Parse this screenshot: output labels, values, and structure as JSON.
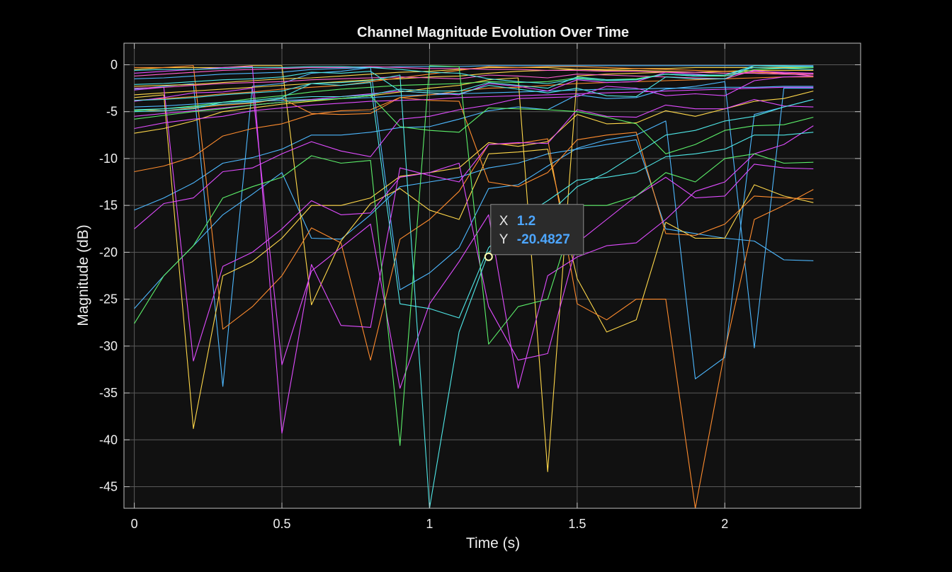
{
  "chart_data": {
    "type": "line",
    "title": "Channel Magnitude Evolution Over Time",
    "xlabel": "Time (s)",
    "ylabel": "Magnitude (dB)",
    "xlim": [
      -0.035,
      2.46
    ],
    "ylim": [
      -47.3,
      2.3
    ],
    "xticks": [
      0,
      0.5,
      1,
      1.5,
      2
    ],
    "xtick_labels": [
      "0",
      "0.5",
      "1",
      "1.5",
      "2"
    ],
    "yticks": [
      0,
      -5,
      -10,
      -15,
      -20,
      -25,
      -30,
      -35,
      -40,
      -45
    ],
    "ytick_labels": [
      "0",
      "-5",
      "-10",
      "-15",
      "-20",
      "-25",
      "-30",
      "-35",
      "-40",
      "-45"
    ],
    "grid": true,
    "background": "#111111",
    "x": [
      0,
      0.1,
      0.2,
      0.3,
      0.4,
      0.5,
      0.6,
      0.7,
      0.8,
      0.9,
      1.0,
      1.1,
      1.2,
      1.3,
      1.4,
      1.5,
      1.6,
      1.7,
      1.8,
      1.9,
      2.0,
      2.1,
      2.2,
      2.3
    ],
    "series": [
      {
        "color": "#4db8ff",
        "values": [
          -2.6,
          -2.3,
          -2.0,
          -34.3,
          -2.3,
          -2.0,
          -0.9,
          -0.7,
          -0.3,
          -24.0,
          -22.2,
          -19.5,
          -13.2,
          -12.8,
          -10.8,
          -8.9,
          -8.0,
          -7.5,
          -6.0,
          -33.5,
          -31.2,
          -5.3,
          -4.5,
          -3.7
        ]
      },
      {
        "color": "#4db8ff",
        "values": [
          -15.5,
          -14.2,
          -12.6,
          -10.5,
          -9.9,
          -9.0,
          -7.5,
          -7.5,
          -7.2,
          -6.7,
          -6.6,
          -5.8,
          -4.9,
          -4.5,
          -4.8,
          -3.2,
          -3.6,
          -3.5,
          -2.6,
          -2.3,
          -1.8,
          -30.2,
          -2.5,
          -2.5
        ]
      },
      {
        "color": "#4db8ff",
        "values": [
          -1.5,
          -1.4,
          -1.2,
          -1.0,
          -0.9,
          -0.8,
          -0.5,
          -0.4,
          -0.3,
          -0.2,
          -0.2,
          -0.2,
          -0.1,
          -0.1,
          -0.1,
          -0.1,
          -0.1,
          -0.1,
          -0.1,
          -0.1,
          -0.1,
          -0.1,
          -0.1,
          -0.1
        ]
      },
      {
        "color": "#4db8ff",
        "values": [
          -4.5,
          -4.4,
          -4.2,
          -4.0,
          -3.9,
          -3.8,
          -3.7,
          -3.6,
          -3.5,
          -3.3,
          -3.2,
          -3.1,
          -3.0,
          -2.9,
          -2.8,
          -2.7,
          -2.6,
          -2.6,
          -2.5,
          -2.5,
          -2.4,
          -2.4,
          -2.3,
          -2.3
        ]
      },
      {
        "color": "#4db8ff",
        "values": [
          -26.0,
          -22.5,
          -19.3,
          -16.0,
          -13.8,
          -11.5,
          -18.5,
          -18.6,
          -16.0,
          -13.0,
          -12.5,
          -12.0,
          -11.0,
          -10.5,
          -9.5,
          -9.0,
          -8.5,
          -8.0,
          -17.5,
          -18.0,
          -18.5,
          -18.8,
          -20.8,
          -20.9
        ]
      },
      {
        "color": "#ffd84a",
        "values": [
          -7.3,
          -6.8,
          -6.0,
          -5.0,
          -4.6,
          -4.2,
          -3.9,
          -3.6,
          -3.3,
          -2.9,
          -2.5,
          -2.2,
          -1.6,
          -1.4,
          -43.4,
          -1.2,
          -1.0,
          -0.9,
          -0.8,
          -0.8,
          -0.7,
          -0.6,
          -0.6,
          -0.6
        ]
      },
      {
        "color": "#ffd84a",
        "values": [
          -3.5,
          -3.2,
          -38.8,
          -22.5,
          -21.0,
          -18.5,
          -15.0,
          -15.0,
          -14.2,
          -11.9,
          -11.5,
          -11.0,
          -8.3,
          -8.7,
          -8.2,
          -5.3,
          -6.3,
          -6.2,
          -4.9,
          -5.5,
          -4.7,
          -3.9,
          -3.6,
          -2.8
        ]
      },
      {
        "color": "#ffd84a",
        "values": [
          -0.5,
          -0.3,
          -0.3,
          -0.3,
          -0.1,
          -0.1,
          -25.6,
          -18.8,
          -14.8,
          -13.2,
          -15.5,
          -16.5,
          -9.5,
          -9.3,
          -9.0,
          -22.8,
          -28.5,
          -27.2,
          -16.8,
          -18.5,
          -18.5,
          -12.8,
          -14.0,
          -14.7
        ]
      },
      {
        "color": "#ffd84a",
        "values": [
          -3.2,
          -3.0,
          -2.8,
          -2.6,
          -2.4,
          -2.2,
          -2.0,
          -1.8,
          -1.6,
          -1.5,
          -1.3,
          -1.2,
          -0.9,
          -0.7,
          -0.6,
          -0.5,
          -0.5,
          -0.4,
          -0.4,
          -0.3,
          -0.3,
          -0.3,
          -0.3,
          -0.3
        ]
      },
      {
        "color": "#ffd84a",
        "values": [
          -2.3,
          -2.2,
          -2.1,
          -1.9,
          -1.7,
          -1.5,
          -1.4,
          -1.2,
          -1.0,
          -0.8,
          -0.7,
          -0.5,
          -0.3,
          -0.3,
          -0.3,
          -0.5,
          -0.6,
          -0.6,
          -0.7,
          -0.8,
          -0.9,
          -0.9,
          -1.0,
          -1.0
        ]
      },
      {
        "color": "#ff8c2e",
        "values": [
          -11.4,
          -10.8,
          -9.8,
          -7.6,
          -6.8,
          -6.3,
          -5.3,
          -4.9,
          -4.8,
          -3.5,
          -3.2,
          -2.8,
          -2.5,
          -2.4,
          -2.2,
          -2.0,
          -1.9,
          -1.8,
          -1.7,
          -1.6,
          -1.5,
          -1.4,
          -1.3,
          -1.3
        ]
      },
      {
        "color": "#ff8c2e",
        "values": [
          -0.3,
          -0.3,
          -0.1,
          -28.2,
          -25.8,
          -22.5,
          -17.4,
          -19.0,
          -31.5,
          -18.6,
          -16.5,
          -13.5,
          -8.5,
          -8.4,
          -7.9,
          -25.5,
          -27.2,
          -25.0,
          -25.0,
          -47.3,
          -30.5,
          -16.5,
          -15.0,
          -13.3
        ]
      },
      {
        "color": "#ff8c2e",
        "values": [
          -3.8,
          -3.6,
          -3.4,
          -3.1,
          -2.9,
          -2.6,
          -2.4,
          -2.2,
          -1.8,
          -1.4,
          -1.0,
          -0.6,
          -0.2,
          -0.3,
          -0.2,
          -0.2,
          -0.3,
          -0.4,
          -0.5,
          -0.6,
          -0.7,
          -0.8,
          -0.9,
          -1.0
        ]
      },
      {
        "color": "#ff8c2e",
        "values": [
          -4.8,
          -4.9,
          -4.6,
          -4.3,
          -4.1,
          -3.6,
          -5.2,
          -5.3,
          -5.2,
          -3.5,
          -3.8,
          -3.9,
          -12.5,
          -13.0,
          -11.5,
          -8.0,
          -7.5,
          -7.2,
          -18.0,
          -18.2,
          -17.0,
          -14.0,
          -14.2,
          -14.3
        ]
      },
      {
        "color": "#e04cff",
        "values": [
          -6.8,
          -6.2,
          -5.8,
          -5.5,
          -4.9,
          -4.6,
          -4.3,
          -4.1,
          -3.9,
          -3.8,
          -3.7,
          -3.5,
          -3.4,
          -3.3,
          -3.2,
          -3.1,
          -3.0,
          -2.9,
          -2.8,
          -2.7,
          -2.6,
          -2.5,
          -2.4,
          -2.4
        ]
      },
      {
        "color": "#e04cff",
        "values": [
          -0.9,
          -0.7,
          -0.5,
          -0.3,
          -0.2,
          -39.3,
          -21.3,
          -27.8,
          -28.0,
          -11.0,
          -11.8,
          -12.5,
          -8.5,
          -8.3,
          -8.4,
          -4.8,
          -5.5,
          -5.6,
          -4.3,
          -4.7,
          -4.7,
          -3.7,
          -4.4,
          -4.5
        ]
      },
      {
        "color": "#e04cff",
        "values": [
          -2.7,
          -2.4,
          -31.6,
          -21.5,
          -20.0,
          -17.5,
          -14.5,
          -16.0,
          -15.8,
          -12.0,
          -11.5,
          -10.5,
          -25.8,
          -31.5,
          -30.8,
          -19.0,
          -16.5,
          -14.0,
          -12.0,
          -14.2,
          -14.0,
          -10.6,
          -11.0,
          -11.1
        ]
      },
      {
        "color": "#e04cff",
        "values": [
          -3.9,
          -3.5,
          -3.0,
          -2.9,
          -2.5,
          -32.0,
          -22.0,
          -19.5,
          -17.0,
          -34.5,
          -25.5,
          -21.0,
          -16.0,
          -34.5,
          -22.5,
          -20.5,
          -19.3,
          -19.0,
          -16.5,
          -13.5,
          -12.5,
          -9.5,
          -8.5,
          -6.5
        ]
      },
      {
        "color": "#e04cff",
        "values": [
          -17.5,
          -14.8,
          -14.2,
          -11.4,
          -11.0,
          -9.5,
          -8.2,
          -9.2,
          -9.8,
          -5.8,
          -5.5,
          -4.8,
          -4.3,
          -3.6,
          -3.5,
          -3.4,
          -2.3,
          -2.5,
          -3.3,
          -3.1,
          -3.3,
          -1.7,
          -1.3,
          -1.2
        ]
      },
      {
        "color": "#e04cff",
        "values": [
          -5.5,
          -5.2,
          -4.9,
          -4.6,
          -4.3,
          -4.0,
          -3.7,
          -3.4,
          -3.1,
          -2.8,
          -3.0,
          -3.2,
          -2.0,
          -2.3,
          -2.8,
          -1.6,
          -1.9,
          -1.8,
          -0.8,
          -1.0,
          -1.2,
          -0.7,
          -0.8,
          -0.9
        ]
      },
      {
        "color": "#ff5fd0",
        "values": [
          -1.2,
          -1.0,
          -0.8,
          -0.6,
          -0.5,
          -0.4,
          -0.3,
          -0.3,
          -0.2,
          -0.3,
          -0.4,
          -0.4,
          -0.5,
          -0.5,
          -0.6,
          -0.6,
          -0.7,
          -0.7,
          -0.8,
          -0.8,
          -0.9,
          -0.9,
          -1.0,
          -1.0
        ]
      },
      {
        "color": "#ff5fd0",
        "values": [
          -2.5,
          -2.4,
          -2.2,
          -2.0,
          -1.9,
          -1.8,
          -1.6,
          -1.5,
          -1.4,
          -1.3,
          -1.4,
          -1.5,
          -1.1,
          -1.2,
          -1.4,
          -1.0,
          -1.1,
          -1.2,
          -1.3,
          -1.4,
          -1.5,
          -0.6,
          -0.9,
          -1.2
        ]
      },
      {
        "color": "#5cf06a",
        "values": [
          -27.6,
          -22.5,
          -19.3,
          -14.2,
          -13.0,
          -12.0,
          -9.7,
          -10.5,
          -10.2,
          -40.6,
          -0.1,
          -0.2,
          -29.8,
          -25.8,
          -25.0,
          -15.0,
          -15.0,
          -14.0,
          -11.5,
          -12.5,
          -10.0,
          -9.5,
          -10.5,
          -10.4
        ]
      },
      {
        "color": "#5cf06a",
        "values": [
          -5.8,
          -5.4,
          -5.0,
          -4.7,
          -4.3,
          -4.0,
          -3.8,
          -3.6,
          -3.3,
          -6.6,
          -7.0,
          -7.2,
          -4.6,
          -4.7,
          -4.8,
          -5.0,
          -5.6,
          -6.3,
          -9.5,
          -8.5,
          -7.0,
          -6.5,
          -6.4,
          -5.6
        ]
      },
      {
        "color": "#5cf06a",
        "values": [
          -4.9,
          -4.7,
          -4.4,
          -4.0,
          -3.6,
          -3.3,
          -2.9,
          -2.6,
          -2.4,
          -2.2,
          -2.1,
          -2.0,
          -1.8,
          -1.9,
          -1.8,
          -1.4,
          -1.6,
          -1.5,
          -1.0,
          -1.2,
          -1.2,
          -0.5,
          -0.4,
          -0.3
        ]
      },
      {
        "color": "#4fe8e8",
        "values": [
          -5.0,
          -4.9,
          -4.7,
          -4.0,
          -3.8,
          -3.5,
          -2.0,
          -2.2,
          -1.9,
          -25.5,
          -26.0,
          -27.0,
          -19.5,
          -16.5,
          -14.5,
          -12.3,
          -12.0,
          -11.5,
          -9.8,
          -9.5,
          -9.0,
          -7.5,
          -7.5,
          -7.2
        ]
      },
      {
        "color": "#4fe8e8",
        "values": [
          -4.8,
          -4.7,
          -4.5,
          -4.2,
          -4.0,
          -3.6,
          -3.4,
          -3.4,
          -3.2,
          -2.6,
          -2.8,
          -2.8,
          -1.9,
          -2.2,
          -2.5,
          -1.3,
          -1.6,
          -1.6,
          -1.0,
          -1.2,
          -1.1,
          -0.1,
          -0.2,
          -0.2
        ]
      },
      {
        "color": "#4fe8e8",
        "values": [
          -3.8,
          -3.7,
          -3.5,
          -3.2,
          -3.0,
          -2.8,
          -2.0,
          -1.9,
          -1.7,
          -1.1,
          -47.3,
          -28.5,
          -20.0,
          -17.5,
          -16.0,
          -13.0,
          -11.5,
          -9.5,
          -7.5,
          -7.0,
          -6.0,
          -5.5,
          -4.5,
          -3.7
        ]
      },
      {
        "color": "#4fe8e8",
        "values": [
          -2.1,
          -2.0,
          -1.8,
          -1.6,
          -1.5,
          -1.3,
          -0.8,
          -0.9,
          -0.7,
          -2.8,
          -3.0,
          -3.1,
          -2.2,
          -2.6,
          -3.0,
          -2.5,
          -3.3,
          -3.4,
          -1.3,
          -1.5,
          -1.5,
          -0.1,
          -0.1,
          -0.2
        ]
      },
      {
        "color": "#4fe8e8",
        "values": [
          -0.6,
          -0.5,
          -0.5,
          -0.4,
          -0.3,
          -0.3,
          -0.2,
          -0.2,
          -0.3,
          -0.5,
          -0.8,
          -0.9,
          -1.5,
          -1.8,
          -2.0,
          -1.5,
          -1.7,
          -1.6,
          -1.0,
          -1.1,
          -1.1,
          -0.3,
          -0.4,
          -0.5
        ]
      }
    ],
    "datatip": {
      "x_label": "X",
      "y_label": "Y",
      "x_value": "1.2",
      "y_value": "-20.4827",
      "point": [
        1.2,
        -20.4827
      ]
    }
  }
}
